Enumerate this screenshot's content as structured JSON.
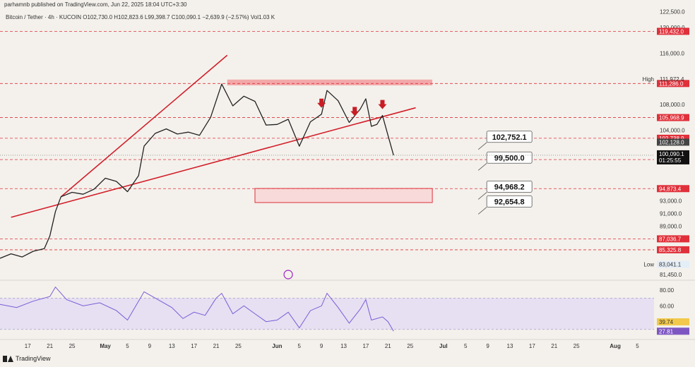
{
  "published_by": "parhamnb published on TradingView.com, Jun 22, 2025 18:04 UTC+3:30",
  "symbol": {
    "name": "Bitcoin / Tether · 4h · KUCOIN",
    "open": "O102,730.0",
    "high": "H102,823.6",
    "low": "L99,398.7",
    "close": "C100,090.1",
    "change": "−2,639.9 (−2.57%)",
    "volume": "Vol1.03 K"
  },
  "footer_brand": "TradingView",
  "chart_data": {
    "type": "candlestick",
    "x_range": [
      "2025-04-12",
      "2025-08-08"
    ],
    "y_range": [
      80800,
      123000
    ],
    "price_axis_ticks": [
      "122,500.0",
      "120,000.0",
      "116,000.0",
      "108,000.0",
      "104,000.0",
      "93,000.0",
      "91,000.0",
      "89,000.0",
      "81,450.0"
    ],
    "time_axis_ticks": [
      {
        "label": "17",
        "date": "2025-04-17"
      },
      {
        "label": "21",
        "date": "2025-04-21"
      },
      {
        "label": "25",
        "date": "2025-04-25"
      },
      {
        "label": "May",
        "date": "2025-05-01"
      },
      {
        "label": "5",
        "date": "2025-05-05"
      },
      {
        "label": "9",
        "date": "2025-05-09"
      },
      {
        "label": "13",
        "date": "2025-05-13"
      },
      {
        "label": "17",
        "date": "2025-05-17"
      },
      {
        "label": "21",
        "date": "2025-05-21"
      },
      {
        "label": "25",
        "date": "2025-05-25"
      },
      {
        "label": "Jun",
        "date": "2025-06-01"
      },
      {
        "label": "5",
        "date": "2025-06-05"
      },
      {
        "label": "9",
        "date": "2025-06-09"
      },
      {
        "label": "13",
        "date": "2025-06-13"
      },
      {
        "label": "17",
        "date": "2025-06-17"
      },
      {
        "label": "21",
        "date": "2025-06-21"
      },
      {
        "label": "25",
        "date": "2025-06-25"
      },
      {
        "label": "Jul",
        "date": "2025-07-01"
      },
      {
        "label": "5",
        "date": "2025-07-05"
      },
      {
        "label": "9",
        "date": "2025-07-09"
      },
      {
        "label": "13",
        "date": "2025-07-13"
      },
      {
        "label": "17",
        "date": "2025-07-17"
      },
      {
        "label": "21",
        "date": "2025-07-21"
      },
      {
        "label": "25",
        "date": "2025-07-25"
      },
      {
        "label": "Aug",
        "date": "2025-08-01"
      },
      {
        "label": "5",
        "date": "2025-08-05"
      }
    ],
    "price_path": [
      [
        "2025-04-12",
        84000
      ],
      [
        "2025-04-14",
        84700
      ],
      [
        "2025-04-16",
        84200
      ],
      [
        "2025-04-18",
        85100
      ],
      [
        "2025-04-20",
        85500
      ],
      [
        "2025-04-21",
        87500
      ],
      [
        "2025-04-22",
        91300
      ],
      [
        "2025-04-23",
        93600
      ],
      [
        "2025-04-25",
        94300
      ],
      [
        "2025-04-27",
        94000
      ],
      [
        "2025-04-29",
        94800
      ],
      [
        "2025-05-01",
        96500
      ],
      [
        "2025-05-03",
        96000
      ],
      [
        "2025-05-05",
        94400
      ],
      [
        "2025-05-07",
        96900
      ],
      [
        "2025-05-08",
        101500
      ],
      [
        "2025-05-10",
        103500
      ],
      [
        "2025-05-12",
        104200
      ],
      [
        "2025-05-14",
        103400
      ],
      [
        "2025-05-16",
        103700
      ],
      [
        "2025-05-18",
        103200
      ],
      [
        "2025-05-20",
        106000
      ],
      [
        "2025-05-22",
        111200
      ],
      [
        "2025-05-24",
        107800
      ],
      [
        "2025-05-26",
        109300
      ],
      [
        "2025-05-28",
        108500
      ],
      [
        "2025-05-30",
        104800
      ],
      [
        "2025-06-01",
        104900
      ],
      [
        "2025-06-03",
        105700
      ],
      [
        "2025-06-05",
        101500
      ],
      [
        "2025-06-07",
        105300
      ],
      [
        "2025-06-09",
        106500
      ],
      [
        "2025-06-10",
        110200
      ],
      [
        "2025-06-12",
        108600
      ],
      [
        "2025-06-14",
        105200
      ],
      [
        "2025-06-16",
        107300
      ],
      [
        "2025-06-17",
        108900
      ],
      [
        "2025-06-18",
        104600
      ],
      [
        "2025-06-19",
        104900
      ],
      [
        "2025-06-20",
        106300
      ],
      [
        "2025-06-21",
        103200
      ],
      [
        "2025-06-22",
        100090
      ]
    ],
    "rsi_path": [
      [
        "2025-04-12",
        62
      ],
      [
        "2025-04-15",
        58
      ],
      [
        "2025-04-18",
        66
      ],
      [
        "2025-04-21",
        72
      ],
      [
        "2025-04-22",
        84
      ],
      [
        "2025-04-24",
        68
      ],
      [
        "2025-04-27",
        60
      ],
      [
        "2025-04-30",
        64
      ],
      [
        "2025-05-03",
        54
      ],
      [
        "2025-05-05",
        42
      ],
      [
        "2025-05-08",
        78
      ],
      [
        "2025-05-10",
        70
      ],
      [
        "2025-05-13",
        58
      ],
      [
        "2025-05-15",
        44
      ],
      [
        "2025-05-17",
        52
      ],
      [
        "2025-05-19",
        48
      ],
      [
        "2025-05-21",
        70
      ],
      [
        "2025-05-22",
        76
      ],
      [
        "2025-05-24",
        50
      ],
      [
        "2025-05-26",
        60
      ],
      [
        "2025-05-28",
        50
      ],
      [
        "2025-05-30",
        40
      ],
      [
        "2025-06-01",
        42
      ],
      [
        "2025-06-03",
        52
      ],
      [
        "2025-06-05",
        32
      ],
      [
        "2025-06-07",
        54
      ],
      [
        "2025-06-09",
        60
      ],
      [
        "2025-06-10",
        76
      ],
      [
        "2025-06-12",
        58
      ],
      [
        "2025-06-14",
        38
      ],
      [
        "2025-06-16",
        56
      ],
      [
        "2025-06-17",
        68
      ],
      [
        "2025-06-18",
        42
      ],
      [
        "2025-06-20",
        46
      ],
      [
        "2025-06-21",
        40
      ],
      [
        "2025-06-22",
        27.81
      ]
    ],
    "rsi_axis_ticks": [
      "80.00",
      "60.00"
    ],
    "rsi_levels": [
      70,
      30
    ],
    "rsi_range": [
      20,
      90
    ],
    "horizontal_levels": [
      {
        "price": 119432.0,
        "label": "119,432.0"
      },
      {
        "price": 111286.0,
        "label": "111,286.0"
      },
      {
        "price": 105968.9,
        "label": "105,968.9"
      },
      {
        "price": 102738.9,
        "label": "102,738.9"
      },
      {
        "price": 99405.0,
        "label": "99,405.0"
      },
      {
        "price": 94873.4,
        "label": "94,873.4"
      },
      {
        "price": 87036.7,
        "label": "87,036.7"
      },
      {
        "price": 85325.8,
        "label": "85,325.8"
      }
    ],
    "price_tags": {
      "high_label": "High",
      "high_value": "111,972.4",
      "high_price": 111972.4,
      "low_label": "Low",
      "low_value": "83,041.1",
      "low_price": 83041.1,
      "close_value": "100,090.1",
      "close_price": 100090.1,
      "countdown": "01:25:55",
      "prev_close_value": "102,128.0",
      "prev_close_price": 102128.0,
      "rsi_value": "27.81",
      "rsi_ma_value": "39.74"
    },
    "callouts": [
      {
        "text": "102,752.1",
        "price": 102752.1
      },
      {
        "text": "99,500.0",
        "price": 99500.0
      },
      {
        "text": "94,968.2",
        "price": 94968.2
      },
      {
        "text": "92,654.8",
        "price": 92654.8
      }
    ],
    "zones": [
      {
        "name": "resistance-zone",
        "from": "2025-05-23",
        "to": "2025-06-29",
        "low": 111000,
        "high": 111900,
        "color": "#f2a8a8"
      },
      {
        "name": "support-zone",
        "from": "2025-05-28",
        "to": "2025-06-29",
        "low": 92700,
        "high": 94900,
        "color": "#f8dada"
      }
    ],
    "trend_lines": [
      {
        "name": "upper-channel-line",
        "from": [
          "2025-04-23",
          93600
        ],
        "to": [
          "2025-05-23",
          115700
        ]
      },
      {
        "name": "lower-channel-line",
        "from": [
          "2025-04-14",
          90400
        ],
        "to": [
          "2025-06-26",
          107500
        ]
      }
    ],
    "arrows": [
      "2025-06-09",
      "2025-06-15",
      "2025-06-20"
    ],
    "colors": {
      "background": "#f4f1ec",
      "level_line": "#e0303a",
      "label_red": "#e0303a",
      "trend": "#d21f2a",
      "price_line": "#222222",
      "rsi_line": "#7b5cd6",
      "rsi_band": "#e6e0f2",
      "arrow": "#c81d25",
      "rsi_tag": "#7e57c2"
    }
  }
}
